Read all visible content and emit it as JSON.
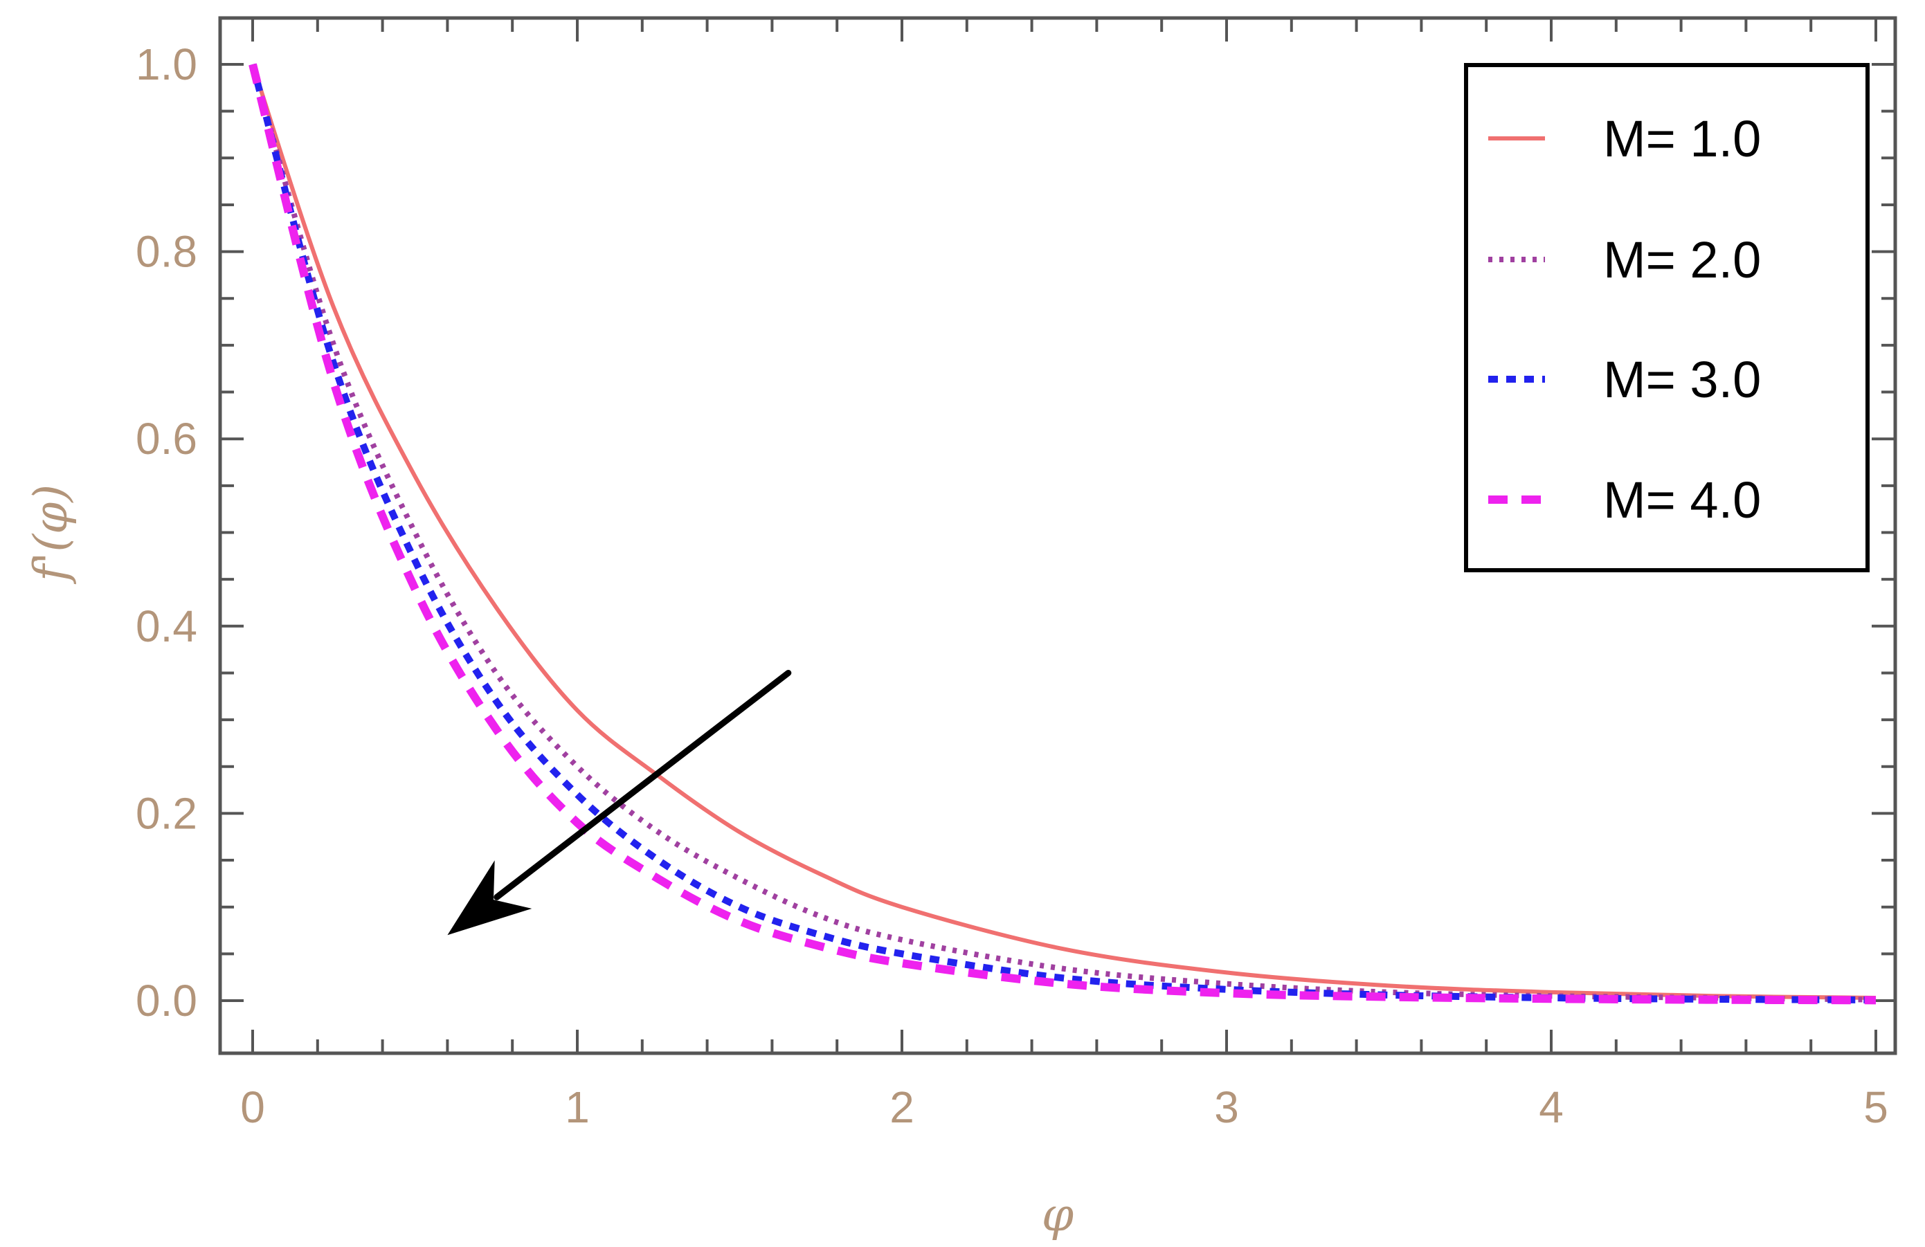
{
  "chart_data": {
    "type": "line",
    "title": "",
    "xlabel": "φ",
    "ylabel": "f'(φ)",
    "xlim": [
      0,
      5
    ],
    "ylim": [
      0,
      1.0
    ],
    "x_ticks": [
      "0",
      "1",
      "2",
      "3",
      "4",
      "5"
    ],
    "y_ticks": [
      "0.0",
      "0.2",
      "0.4",
      "0.6",
      "0.8",
      "1.0"
    ],
    "grid": false,
    "legend_position": "top-right",
    "x": [
      0,
      0.25,
      0.5,
      0.75,
      1.0,
      1.25,
      1.5,
      1.75,
      2.0,
      2.5,
      3.0,
      3.5,
      4.0,
      4.5,
      5.0
    ],
    "series": [
      {
        "name": "M= 1.0",
        "color": "#f07070",
        "style": "solid",
        "values": [
          1.0,
          0.74,
          0.56,
          0.42,
          0.31,
          0.24,
          0.18,
          0.135,
          0.1,
          0.055,
          0.03,
          0.016,
          0.009,
          0.005,
          0.003
        ]
      },
      {
        "name": "M= 2.0",
        "color": "#a040a0",
        "style": "dotted",
        "values": [
          1.0,
          0.7,
          0.5,
          0.35,
          0.25,
          0.18,
          0.13,
          0.09,
          0.065,
          0.034,
          0.018,
          0.009,
          0.005,
          0.003,
          0.001
        ]
      },
      {
        "name": "M= 3.0",
        "color": "#2222ee",
        "style": "dashed",
        "values": [
          1.0,
          0.68,
          0.47,
          0.32,
          0.22,
          0.15,
          0.1,
          0.07,
          0.05,
          0.024,
          0.012,
          0.006,
          0.003,
          0.0015,
          0.0008
        ]
      },
      {
        "name": "M= 4.0",
        "color": "#ee22ee",
        "style": "long-dashed",
        "values": [
          1.0,
          0.66,
          0.44,
          0.29,
          0.19,
          0.13,
          0.085,
          0.058,
          0.04,
          0.018,
          0.008,
          0.004,
          0.002,
          0.001,
          0.0005
        ]
      }
    ],
    "annotations": [
      {
        "type": "arrow",
        "from": [
          1.65,
          0.35
        ],
        "to": [
          0.6,
          0.07
        ],
        "color": "#000000"
      }
    ]
  }
}
